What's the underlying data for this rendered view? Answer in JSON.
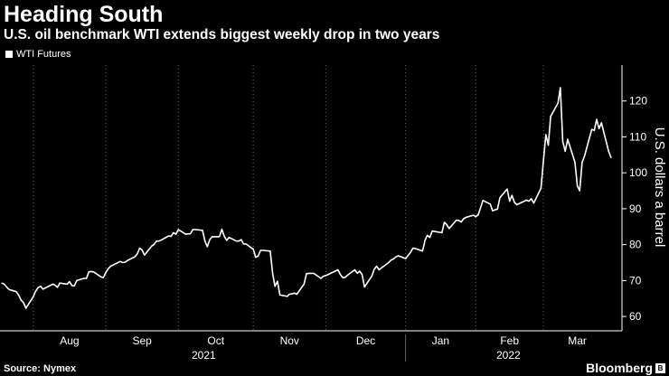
{
  "header": {
    "title": "Heading South",
    "subtitle": "U.S. oil benchmark WTI extends biggest weekly drop in two years"
  },
  "footer": {
    "source": "Source: Nymex",
    "brand": "Bloomberg"
  },
  "colors": {
    "background": "#000000",
    "line": "#ffffff",
    "grid": "#6a6a6a"
  },
  "chart_data": {
    "type": "line",
    "title": "Heading South",
    "subtitle": "U.S. oil benchmark WTI extends biggest weekly drop in two years",
    "ylabel": "U.S. dollars a barrel",
    "xlabel": "",
    "ylim": [
      56,
      130
    ],
    "yticks": [
      60,
      70,
      80,
      90,
      100,
      110,
      120
    ],
    "y_axis_side": "right",
    "legend": {
      "entries": [
        "WTI Futures"
      ],
      "placement": "top-left"
    },
    "grid": {
      "vertical": true,
      "style": "dotted"
    },
    "month_labels": [
      "Aug",
      "Sep",
      "Oct",
      "Nov",
      "Dec",
      "Jan",
      "Feb",
      "Mar"
    ],
    "year_labels": [
      "2021",
      "2022"
    ],
    "series": [
      {
        "name": "WTI Futures",
        "x": [
          "2021-07-20",
          "2021-07-21",
          "2021-07-22",
          "2021-07-23",
          "2021-07-26",
          "2021-07-27",
          "2021-07-28",
          "2021-07-29",
          "2021-07-30",
          "2021-08-02",
          "2021-08-03",
          "2021-08-04",
          "2021-08-05",
          "2021-08-06",
          "2021-08-09",
          "2021-08-10",
          "2021-08-11",
          "2021-08-12",
          "2021-08-13",
          "2021-08-16",
          "2021-08-17",
          "2021-08-18",
          "2021-08-19",
          "2021-08-20",
          "2021-08-23",
          "2021-08-24",
          "2021-08-25",
          "2021-08-26",
          "2021-08-27",
          "2021-08-30",
          "2021-08-31",
          "2021-09-01",
          "2021-09-02",
          "2021-09-03",
          "2021-09-07",
          "2021-09-08",
          "2021-09-09",
          "2021-09-10",
          "2021-09-13",
          "2021-09-14",
          "2021-09-15",
          "2021-09-16",
          "2021-09-17",
          "2021-09-20",
          "2021-09-21",
          "2021-09-22",
          "2021-09-23",
          "2021-09-24",
          "2021-09-27",
          "2021-09-28",
          "2021-09-29",
          "2021-09-30",
          "2021-10-01",
          "2021-10-04",
          "2021-10-05",
          "2021-10-06",
          "2021-10-07",
          "2021-10-08",
          "2021-10-11",
          "2021-10-12",
          "2021-10-13",
          "2021-10-14",
          "2021-10-15",
          "2021-10-18",
          "2021-10-19",
          "2021-10-20",
          "2021-10-21",
          "2021-10-22",
          "2021-10-25",
          "2021-10-26",
          "2021-10-27",
          "2021-10-28",
          "2021-10-29",
          "2021-11-01",
          "2021-11-02",
          "2021-11-03",
          "2021-11-04",
          "2021-11-05",
          "2021-11-08",
          "2021-11-09",
          "2021-11-10",
          "2021-11-11",
          "2021-11-12",
          "2021-11-15",
          "2021-11-16",
          "2021-11-17",
          "2021-11-18",
          "2021-11-19",
          "2021-11-22",
          "2021-11-23",
          "2021-11-24",
          "2021-11-26",
          "2021-11-29",
          "2021-11-30",
          "2021-12-01",
          "2021-12-02",
          "2021-12-03",
          "2021-12-06",
          "2021-12-07",
          "2021-12-08",
          "2021-12-09",
          "2021-12-10",
          "2021-12-13",
          "2021-12-14",
          "2021-12-15",
          "2021-12-16",
          "2021-12-17",
          "2021-12-20",
          "2021-12-21",
          "2021-12-22",
          "2021-12-23",
          "2021-12-27",
          "2021-12-28",
          "2021-12-29",
          "2021-12-30",
          "2021-12-31",
          "2022-01-03",
          "2022-01-04",
          "2022-01-05",
          "2022-01-06",
          "2022-01-07",
          "2022-01-10",
          "2022-01-11",
          "2022-01-12",
          "2022-01-13",
          "2022-01-14",
          "2022-01-18",
          "2022-01-19",
          "2022-01-20",
          "2022-01-21",
          "2022-01-24",
          "2022-01-25",
          "2022-01-26",
          "2022-01-27",
          "2022-01-28",
          "2022-01-31",
          "2022-02-01",
          "2022-02-02",
          "2022-02-03",
          "2022-02-04",
          "2022-02-07",
          "2022-02-08",
          "2022-02-09",
          "2022-02-10",
          "2022-02-11",
          "2022-02-14",
          "2022-02-15",
          "2022-02-16",
          "2022-02-17",
          "2022-02-18",
          "2022-02-22",
          "2022-02-23",
          "2022-02-24",
          "2022-02-25",
          "2022-02-28",
          "2022-03-01",
          "2022-03-02",
          "2022-03-03",
          "2022-03-04",
          "2022-03-07",
          "2022-03-08",
          "2022-03-09",
          "2022-03-10",
          "2022-03-11",
          "2022-03-14",
          "2022-03-15",
          "2022-03-16",
          "2022-03-17",
          "2022-03-18",
          "2022-03-21",
          "2022-03-22",
          "2022-03-23",
          "2022-03-24",
          "2022-03-25",
          "2022-03-28",
          "2022-03-29"
        ],
        "values": [
          69.3,
          69.0,
          68.2,
          67.5,
          66.9,
          65.9,
          64.5,
          63.8,
          62.3,
          65.5,
          67.0,
          68.0,
          68.4,
          67.6,
          68.6,
          69.0,
          68.7,
          68.1,
          69.3,
          69.0,
          69.7,
          68.6,
          68.5,
          70.0,
          70.6,
          70.6,
          72.4,
          72.5,
          72.4,
          71.0,
          70.8,
          72.2,
          73.3,
          74.0,
          75.3,
          75.0,
          75.1,
          75.6,
          76.6,
          77.4,
          79.0,
          78.5,
          77.1,
          79.6,
          80.1,
          81.0,
          81.0,
          81.3,
          82.4,
          82.3,
          83.3,
          82.9,
          84.2,
          82.9,
          83.0,
          83.0,
          84.2,
          84.2,
          84.0,
          81.0,
          79.4,
          81.4,
          82.2,
          82.2,
          84.3,
          82.3,
          81.2,
          82.0,
          81.0,
          81.0,
          81.4,
          80.2,
          80.2,
          78.7,
          76.5,
          76.8,
          78.4,
          78.4,
          78.2,
          71.9,
          68.4,
          69.8,
          66.0,
          65.6,
          66.2,
          66.3,
          66.5,
          66.2,
          69.0,
          71.9,
          72.0,
          72.0,
          70.6,
          71.2,
          71.4,
          71.7,
          72.0,
          73.0,
          71.7,
          70.8,
          70.9,
          71.5,
          73.0,
          72.0,
          72.6,
          71.7,
          68.2,
          71.2,
          73.1,
          74.0,
          73.0,
          75.0,
          75.7,
          76.0,
          76.6,
          76.9,
          76.1,
          77.0,
          77.8,
          79.0,
          78.9,
          78.2,
          81.2,
          82.6,
          82.0,
          83.8,
          83.3,
          86.2,
          85.6,
          84.5,
          86.8,
          86.7,
          86.3,
          87.2,
          87.6,
          88.2,
          87.8,
          88.3,
          90.3,
          92.3,
          91.3,
          89.4,
          89.7,
          89.9,
          93.1,
          95.5,
          92.1,
          93.7,
          91.8,
          91.1,
          92.4,
          92.1,
          92.8,
          91.6,
          95.7,
          103.4,
          110.6,
          107.7,
          115.7,
          119.4,
          123.7,
          108.7,
          106.0,
          109.3,
          103.0,
          96.4,
          95.0,
          102.9,
          104.7,
          112.1,
          111.8,
          114.9,
          112.3,
          113.9,
          105.9,
          104.2
        ]
      }
    ]
  }
}
